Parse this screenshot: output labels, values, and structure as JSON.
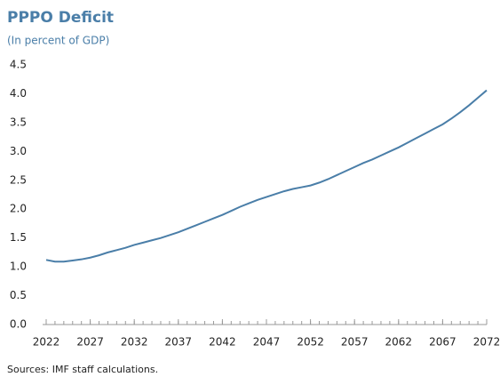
{
  "chart_data": {
    "type": "line",
    "title": "PPPO Deficit",
    "subtitle": "(In percent of GDP)",
    "note": "Sources: IMF staff calculations.",
    "x": [
      2022,
      2023,
      2024,
      2025,
      2026,
      2027,
      2028,
      2029,
      2030,
      2031,
      2032,
      2033,
      2034,
      2035,
      2036,
      2037,
      2038,
      2039,
      2040,
      2041,
      2042,
      2043,
      2044,
      2045,
      2046,
      2047,
      2048,
      2049,
      2050,
      2051,
      2052,
      2053,
      2054,
      2055,
      2056,
      2057,
      2058,
      2059,
      2060,
      2061,
      2062,
      2063,
      2064,
      2065,
      2066,
      2067,
      2068,
      2069,
      2070,
      2071,
      2072
    ],
    "series": [
      {
        "name": "PPPO Deficit",
        "color": "#4a7ea8",
        "values": [
          1.12,
          1.09,
          1.09,
          1.11,
          1.13,
          1.16,
          1.2,
          1.25,
          1.29,
          1.33,
          1.38,
          1.42,
          1.46,
          1.5,
          1.55,
          1.6,
          1.66,
          1.72,
          1.78,
          1.84,
          1.9,
          1.97,
          2.04,
          2.1,
          2.16,
          2.21,
          2.26,
          2.31,
          2.35,
          2.38,
          2.41,
          2.46,
          2.52,
          2.59,
          2.66,
          2.73,
          2.8,
          2.86,
          2.93,
          3.0,
          3.07,
          3.15,
          3.23,
          3.31,
          3.39,
          3.47,
          3.57,
          3.68,
          3.8,
          3.93,
          4.06
        ]
      }
    ],
    "xlim": [
      2022,
      2072
    ],
    "xticks": [
      2022,
      2027,
      2032,
      2037,
      2042,
      2047,
      2052,
      2057,
      2062,
      2067,
      2072
    ],
    "ylim": [
      0,
      4.5
    ],
    "yticks": [
      {
        "value": 0,
        "label": "0.0"
      },
      0.5,
      {
        "value": 1,
        "label": "1.0"
      },
      1.5,
      {
        "value": 2,
        "label": "2.0"
      },
      2.5,
      {
        "value": 3,
        "label": "3.0"
      },
      3.5,
      {
        "value": 4,
        "label": "4.0"
      },
      4.5
    ],
    "grid": false
  }
}
